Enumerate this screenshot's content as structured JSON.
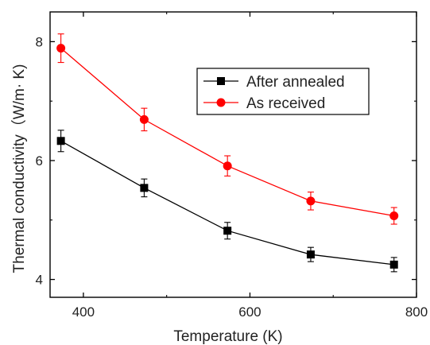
{
  "chart_data": {
    "type": "line",
    "title": "",
    "xlabel": "Temperature (K)",
    "ylabel": "Thermal conductivity（W/m· K)",
    "xlim": [
      360,
      800
    ],
    "ylim": [
      3.7,
      8.5
    ],
    "x_ticks": [
      "400",
      "600",
      "800"
    ],
    "y_ticks": [
      "4",
      "6",
      "8"
    ],
    "grid": false,
    "legend_position": "top-right",
    "x": [
      373,
      473,
      573,
      673,
      773
    ],
    "series": [
      {
        "name": "After annealed",
        "color": "#000000",
        "marker": "square",
        "values": [
          6.33,
          5.54,
          4.82,
          4.42,
          4.25
        ],
        "errors": [
          0.18,
          0.15,
          0.14,
          0.12,
          0.12
        ]
      },
      {
        "name": "As received",
        "color": "#ff0000",
        "marker": "circle",
        "values": [
          7.89,
          6.69,
          5.91,
          5.32,
          5.07
        ],
        "errors": [
          0.24,
          0.19,
          0.17,
          0.15,
          0.14
        ]
      }
    ]
  }
}
